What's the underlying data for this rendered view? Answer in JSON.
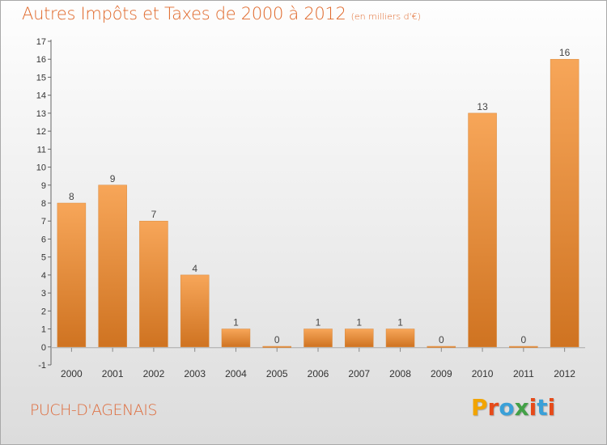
{
  "title": "Autres Impôts et Taxes de 2000 à 2012",
  "subtitle": "(en milliers d'€)",
  "commune": "PUCH-D'AGENAIS",
  "logo": {
    "text": "Proxiti",
    "colors": [
      "#f2a400",
      "#e64a19",
      "#3aa0d8",
      "#43a047",
      "#e64a19",
      "#3aa0d8",
      "#e64a19"
    ]
  },
  "colors": {
    "bar_light": "#f7a659",
    "bar_dark": "#cf7321",
    "title": "#e0682a"
  },
  "chart_data": {
    "type": "bar",
    "categories": [
      "2000",
      "2001",
      "2002",
      "2003",
      "2004",
      "2005",
      "2006",
      "2007",
      "2008",
      "2009",
      "2010",
      "2011",
      "2012"
    ],
    "values": [
      8,
      9,
      7,
      4,
      1,
      0,
      1,
      1,
      1,
      0,
      13,
      0,
      16
    ],
    "data_labels": [
      "8",
      "9",
      "7",
      "4",
      "1",
      "0",
      "1",
      "1",
      "1",
      "0",
      "13",
      "0",
      "16"
    ],
    "yticks": [
      "-1",
      "0",
      "1",
      "2",
      "3",
      "4",
      "5",
      "6",
      "7",
      "8",
      "9",
      "10",
      "11",
      "12",
      "13",
      "14",
      "15",
      "16",
      "17"
    ],
    "ylim": [
      -1,
      17
    ],
    "grid": false,
    "legend": "none"
  }
}
